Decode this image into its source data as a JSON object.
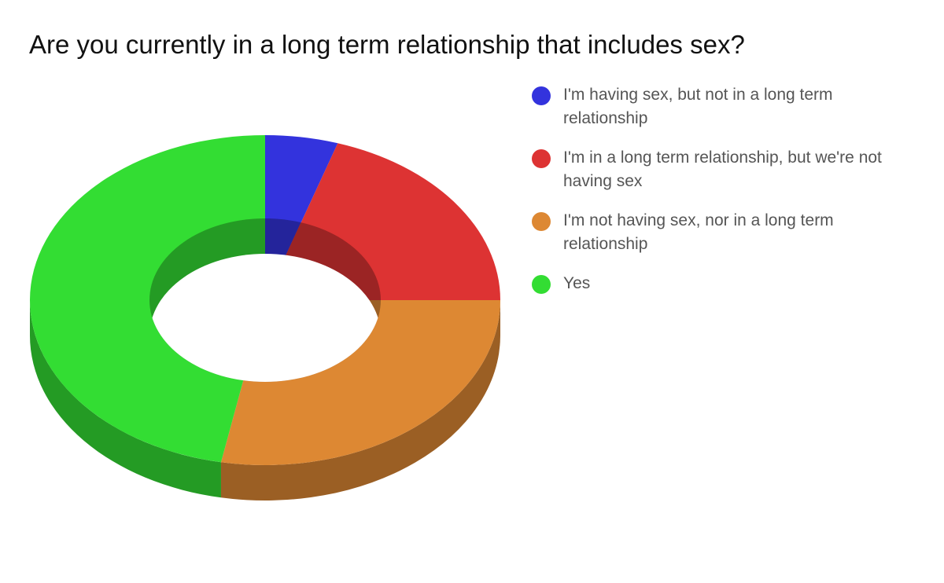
{
  "chart_data": {
    "type": "pie",
    "donut": true,
    "three_d": true,
    "title": "Are you currently in a long term relationship that includes sex?",
    "categories": [
      "I'm having sex, but not in a long term relationship",
      "I'm in a long term relationship, but we're not having sex",
      "I'm not having sex, nor in a long term relationship",
      "Yes"
    ],
    "values": [
      5,
      20,
      28,
      47
    ],
    "colors": [
      "#3333dd",
      "#dd3333",
      "#dd8833",
      "#33dd33"
    ],
    "legend": "right"
  }
}
